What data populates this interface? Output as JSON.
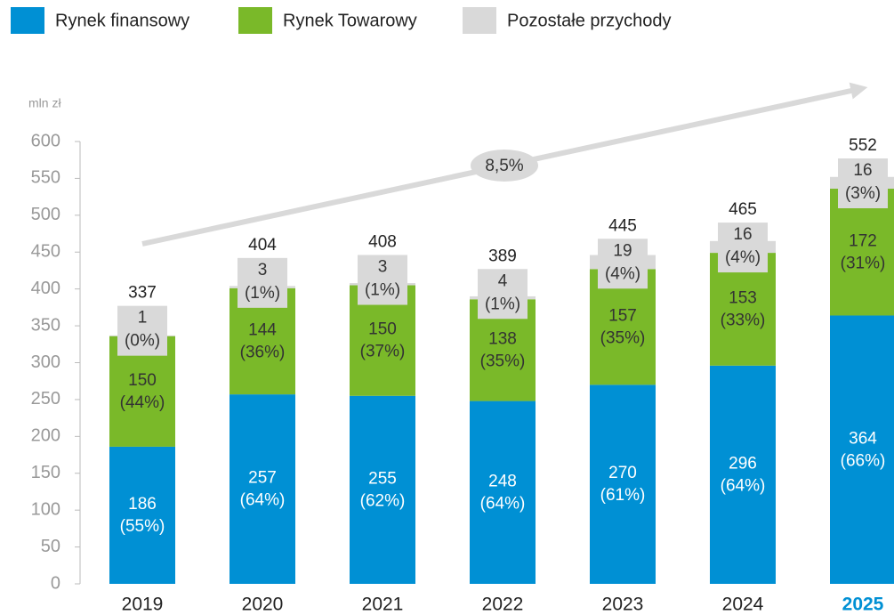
{
  "chart_data": {
    "type": "stacked_bar",
    "y_axis_label": "mln zł",
    "annotation": "8,5%",
    "categories": [
      "2019",
      "2020",
      "2021",
      "2022",
      "2023",
      "2024",
      "2025"
    ],
    "highlight": "2025",
    "highlight_color": "#0090d4",
    "series": [
      {
        "name": "Rynek finansowy",
        "color": "#0090d4",
        "label_color": "#ffffff",
        "values": [
          186,
          257,
          255,
          248,
          270,
          296,
          364
        ],
        "share_labels": [
          "(55%)",
          "(64%)",
          "(62%)",
          "(64%)",
          "(61%)",
          "(64%)",
          "(66%)"
        ]
      },
      {
        "name": "Rynek Towarowy",
        "color": "#7ab929",
        "label_color": "#333333",
        "values": [
          150,
          144,
          150,
          138,
          157,
          153,
          172
        ],
        "share_labels": [
          "(44%)",
          "(36%)",
          "(37%)",
          "(35%)",
          "(35%)",
          "(33%)",
          "(31%)"
        ]
      },
      {
        "name": "Pozostałe przychody",
        "color": "#d9d9d9",
        "label_color": "#333333",
        "values": [
          1,
          3,
          3,
          4,
          19,
          16,
          16
        ],
        "share_labels": [
          "(0%)",
          "(1%)",
          "(1%)",
          "(1%)",
          "(4%)",
          "(4%)",
          "(3%)"
        ]
      }
    ],
    "totals": [
      337,
      404,
      408,
      389,
      445,
      465,
      552
    ],
    "ylim": [
      0,
      600
    ],
    "yticks": [
      0,
      50,
      100,
      150,
      200,
      250,
      300,
      350,
      400,
      450,
      500,
      550,
      600
    ],
    "grid": false
  }
}
